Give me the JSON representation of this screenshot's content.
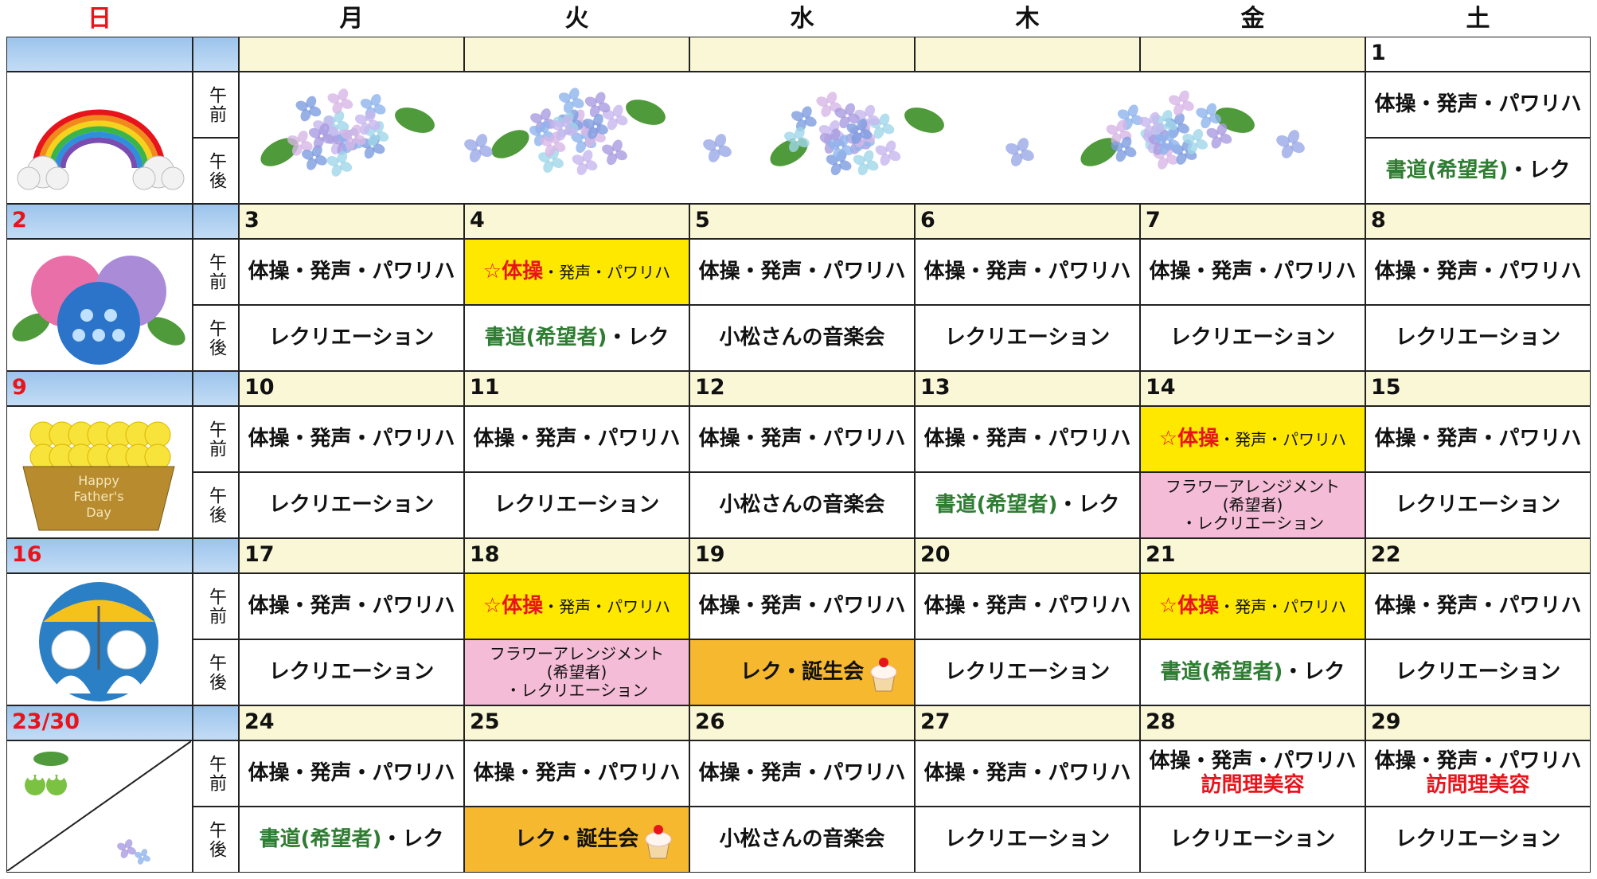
{
  "header": {
    "days": [
      "日",
      "月",
      "火",
      "水",
      "木",
      "金",
      "土"
    ]
  },
  "labels": {
    "am": "午前",
    "pm": "午後"
  },
  "weeks": [
    {
      "days": [
        {},
        {},
        {},
        {},
        {},
        {
          "date": "1",
          "am": {
            "lines": [
              [
                {
                  "text": "体操・発声・パワリハ"
                }
              ]
            ]
          },
          "pm": {
            "lines": [
              [
                {
                  "text": "書道(希望者)",
                  "color": "#2e7d32"
                },
                {
                  "text": "・レク"
                }
              ]
            ]
          }
        }
      ]
    },
    {
      "sunday": "2",
      "days": [
        {
          "date": "3",
          "am": {
            "lines": [
              [
                {
                  "text": "体操・発声・パワリハ"
                }
              ]
            ]
          },
          "pm": {
            "lines": [
              [
                {
                  "text": "レクリエーション"
                }
              ]
            ]
          }
        },
        {
          "date": "4",
          "am": {
            "bg": "#ffe800",
            "lines": [
              [
                {
                  "text": "☆体操",
                  "color": "#e8141b"
                },
                {
                  "text": "・発声・パワリハ",
                  "small": true
                }
              ]
            ]
          },
          "pm": {
            "lines": [
              [
                {
                  "text": "書道(希望者)",
                  "color": "#2e7d32"
                },
                {
                  "text": "・レク"
                }
              ]
            ]
          }
        },
        {
          "date": "5",
          "am": {
            "lines": [
              [
                {
                  "text": "体操・発声・パワリハ"
                }
              ]
            ]
          },
          "pm": {
            "lines": [
              [
                {
                  "text": "小松さんの音楽会"
                }
              ]
            ]
          }
        },
        {
          "date": "6",
          "am": {
            "lines": [
              [
                {
                  "text": "体操・発声・パワリハ"
                }
              ]
            ]
          },
          "pm": {
            "lines": [
              [
                {
                  "text": "レクリエーション"
                }
              ]
            ]
          }
        },
        {
          "date": "7",
          "am": {
            "lines": [
              [
                {
                  "text": "体操・発声・パワリハ"
                }
              ]
            ]
          },
          "pm": {
            "lines": [
              [
                {
                  "text": "レクリエーション"
                }
              ]
            ]
          }
        },
        {
          "date": "8",
          "am": {
            "lines": [
              [
                {
                  "text": "体操・発声・パワリハ"
                }
              ]
            ]
          },
          "pm": {
            "lines": [
              [
                {
                  "text": "レクリエーション"
                }
              ]
            ]
          }
        }
      ]
    },
    {
      "sunday": "9",
      "art_text": [
        "Happy",
        "Father's",
        "Day"
      ],
      "days": [
        {
          "date": "10",
          "am": {
            "lines": [
              [
                {
                  "text": "体操・発声・パワリハ"
                }
              ]
            ]
          },
          "pm": {
            "lines": [
              [
                {
                  "text": "レクリエーション"
                }
              ]
            ]
          }
        },
        {
          "date": "11",
          "am": {
            "lines": [
              [
                {
                  "text": "体操・発声・パワリハ"
                }
              ]
            ]
          },
          "pm": {
            "lines": [
              [
                {
                  "text": "レクリエーション"
                }
              ]
            ]
          }
        },
        {
          "date": "12",
          "am": {
            "lines": [
              [
                {
                  "text": "体操・発声・パワリハ"
                }
              ]
            ]
          },
          "pm": {
            "lines": [
              [
                {
                  "text": "小松さんの音楽会"
                }
              ]
            ]
          }
        },
        {
          "date": "13",
          "am": {
            "lines": [
              [
                {
                  "text": "体操・発声・パワリハ"
                }
              ]
            ]
          },
          "pm": {
            "lines": [
              [
                {
                  "text": "書道(希望者)",
                  "color": "#2e7d32"
                },
                {
                  "text": "・レク"
                }
              ]
            ]
          }
        },
        {
          "date": "14",
          "am": {
            "bg": "#ffe800",
            "lines": [
              [
                {
                  "text": "☆体操",
                  "color": "#e8141b"
                },
                {
                  "text": "・発声・パワリハ",
                  "small": true
                }
              ]
            ]
          },
          "pm": {
            "bg": "#f4bcd6",
            "small": true,
            "lines": [
              [
                {
                  "text": "フラワーアレンジメント"
                }
              ],
              [
                {
                  "text": "(希望者)"
                }
              ],
              [
                {
                  "text": "・レクリエーション"
                }
              ]
            ]
          }
        },
        {
          "date": "15",
          "am": {
            "lines": [
              [
                {
                  "text": "体操・発声・パワリハ"
                }
              ]
            ]
          },
          "pm": {
            "lines": [
              [
                {
                  "text": "レクリエーション"
                }
              ]
            ]
          }
        }
      ]
    },
    {
      "sunday": "16",
      "days": [
        {
          "date": "17",
          "am": {
            "lines": [
              [
                {
                  "text": "体操・発声・パワリハ"
                }
              ]
            ]
          },
          "pm": {
            "lines": [
              [
                {
                  "text": "レクリエーション"
                }
              ]
            ]
          }
        },
        {
          "date": "18",
          "am": {
            "bg": "#ffe800",
            "lines": [
              [
                {
                  "text": "☆体操",
                  "color": "#e8141b"
                },
                {
                  "text": "・発声・パワリハ",
                  "small": true
                }
              ]
            ]
          },
          "pm": {
            "bg": "#f4bcd6",
            "small": true,
            "lines": [
              [
                {
                  "text": "フラワーアレンジメント"
                }
              ],
              [
                {
                  "text": "(希望者)"
                }
              ],
              [
                {
                  "text": "・レクリエーション"
                }
              ]
            ]
          }
        },
        {
          "date": "19",
          "am": {
            "lines": [
              [
                {
                  "text": "体操・発声・パワリハ"
                }
              ]
            ]
          },
          "pm": {
            "bg": "#f5b82e",
            "cake": true,
            "lines": [
              [
                {
                  "text": "レク・誕生会"
                }
              ]
            ]
          }
        },
        {
          "date": "20",
          "am": {
            "lines": [
              [
                {
                  "text": "体操・発声・パワリハ"
                }
              ]
            ]
          },
          "pm": {
            "lines": [
              [
                {
                  "text": "レクリエーション"
                }
              ]
            ]
          }
        },
        {
          "date": "21",
          "am": {
            "bg": "#ffe800",
            "lines": [
              [
                {
                  "text": "☆体操",
                  "color": "#e8141b"
                },
                {
                  "text": "・発声・パワリハ",
                  "small": true
                }
              ]
            ]
          },
          "pm": {
            "lines": [
              [
                {
                  "text": "書道(希望者)",
                  "color": "#2e7d32"
                },
                {
                  "text": "・レク"
                }
              ]
            ]
          }
        },
        {
          "date": "22",
          "am": {
            "lines": [
              [
                {
                  "text": "体操・発声・パワリハ"
                }
              ]
            ]
          },
          "pm": {
            "lines": [
              [
                {
                  "text": "レクリエーション"
                }
              ]
            ]
          }
        }
      ]
    },
    {
      "sunday": "23/30",
      "days": [
        {
          "date": "24",
          "am": {
            "lines": [
              [
                {
                  "text": "体操・発声・パワリハ"
                }
              ]
            ]
          },
          "pm": {
            "lines": [
              [
                {
                  "text": "書道(希望者)",
                  "color": "#2e7d32"
                },
                {
                  "text": "・レク"
                }
              ]
            ]
          }
        },
        {
          "date": "25",
          "am": {
            "lines": [
              [
                {
                  "text": "体操・発声・パワリハ"
                }
              ]
            ]
          },
          "pm": {
            "bg": "#f5b82e",
            "cake": true,
            "lines": [
              [
                {
                  "text": "レク・誕生会"
                }
              ]
            ]
          }
        },
        {
          "date": "26",
          "am": {
            "lines": [
              [
                {
                  "text": "体操・発声・パワリハ"
                }
              ]
            ]
          },
          "pm": {
            "lines": [
              [
                {
                  "text": "小松さんの音楽会"
                }
              ]
            ]
          }
        },
        {
          "date": "27",
          "am": {
            "lines": [
              [
                {
                  "text": "体操・発声・パワリハ"
                }
              ]
            ]
          },
          "pm": {
            "lines": [
              [
                {
                  "text": "レクリエーション"
                }
              ]
            ]
          }
        },
        {
          "date": "28",
          "am": {
            "lines": [
              [
                {
                  "text": "体操・発声・パワリハ"
                }
              ],
              [
                {
                  "text": "訪問理美容",
                  "color": "#e8141b"
                }
              ]
            ]
          },
          "pm": {
            "lines": [
              [
                {
                  "text": "レクリエーション"
                }
              ]
            ]
          }
        },
        {
          "date": "29",
          "am": {
            "lines": [
              [
                {
                  "text": "体操・発声・パワリハ"
                }
              ],
              [
                {
                  "text": "訪問理美容",
                  "color": "#e8141b"
                }
              ]
            ]
          },
          "pm": {
            "lines": [
              [
                {
                  "text": "レクリエーション"
                }
              ]
            ]
          }
        }
      ]
    }
  ]
}
